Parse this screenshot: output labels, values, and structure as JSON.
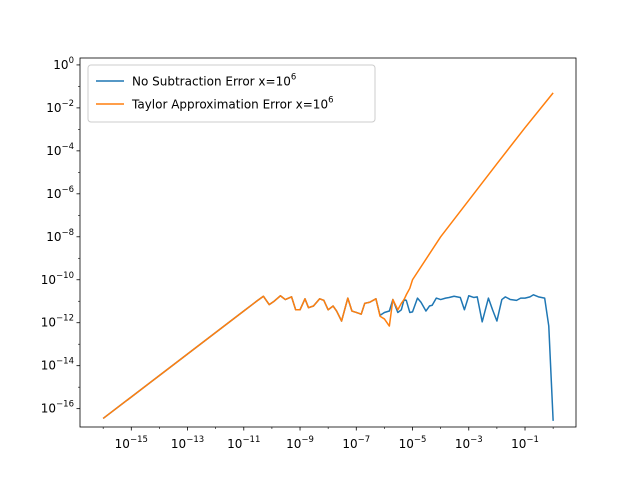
{
  "chart_data": {
    "type": "line",
    "xscale": "log",
    "yscale": "log",
    "xlim": [
      1.5e-17,
      6.5
    ],
    "ylim": [
      1.4e-17,
      2.1
    ],
    "grid": false,
    "legend_position": "top-left",
    "x_ticks": [
      {
        "value": 1e-15,
        "base": "10",
        "exp": "−15"
      },
      {
        "value": 1e-13,
        "base": "10",
        "exp": "−13"
      },
      {
        "value": 1e-11,
        "base": "10",
        "exp": "−11"
      },
      {
        "value": 1e-09,
        "base": "10",
        "exp": "−9"
      },
      {
        "value": 1e-07,
        "base": "10",
        "exp": "−7"
      },
      {
        "value": 1e-05,
        "base": "10",
        "exp": "−5"
      },
      {
        "value": 0.001,
        "base": "10",
        "exp": "−3"
      },
      {
        "value": 0.1,
        "base": "10",
        "exp": "−1"
      }
    ],
    "y_ticks": [
      {
        "value": 1e-16,
        "base": "10",
        "exp": "−16"
      },
      {
        "value": 1e-14,
        "base": "10",
        "exp": "−14"
      },
      {
        "value": 1e-12,
        "base": "10",
        "exp": "−12"
      },
      {
        "value": 1e-10,
        "base": "10",
        "exp": "−10"
      },
      {
        "value": 1e-08,
        "base": "10",
        "exp": "−8"
      },
      {
        "value": 1e-06,
        "base": "10",
        "exp": "−6"
      },
      {
        "value": 0.0001,
        "base": "10",
        "exp": "−4"
      },
      {
        "value": 0.01,
        "base": "10",
        "exp": "−2"
      },
      {
        "value": 1,
        "base": "10",
        "exp": "0"
      }
    ],
    "series": [
      {
        "name": "No Subtraction Error x=10^6",
        "legend_text": "No Subtraction Error x=10",
        "legend_exp": "6",
        "color": "#1f77b4",
        "x": [
          1e-16,
          1e-15,
          1e-14,
          1e-13,
          1e-12,
          1e-11,
          2e-11,
          3e-11,
          5e-11,
          8e-11,
          1.2e-10,
          2e-10,
          3e-10,
          5e-10,
          7e-10,
          1e-09,
          1.5e-09,
          2e-09,
          3e-09,
          5e-09,
          7e-09,
          1e-08,
          1.5e-08,
          2e-08,
          3e-08,
          5e-08,
          7e-08,
          1e-07,
          1.5e-07,
          2e-07,
          3e-07,
          5e-07,
          7e-07,
          1e-06,
          1.5e-06,
          2e-06,
          3e-06,
          4e-06,
          5e-06,
          6e-06,
          8e-06,
          1e-05,
          1.5e-05,
          2e-05,
          3e-05,
          4e-05,
          5e-05,
          7e-05,
          0.0001,
          0.00015,
          0.0002,
          0.0003,
          0.0005,
          0.0007,
          0.001,
          0.0015,
          0.002,
          0.003,
          0.005,
          0.007,
          0.01,
          0.015,
          0.02,
          0.03,
          0.05,
          0.07,
          0.1,
          0.15,
          0.2,
          0.3,
          0.5,
          0.7,
          1
        ],
        "y": [
          3.5e-17,
          3.5e-16,
          3.5e-15,
          3.5e-14,
          3.5e-13,
          3.5e-12,
          7e-12,
          1.05e-11,
          1.7e-11,
          7e-12,
          1e-11,
          1.8e-11,
          1.2e-11,
          1.6e-11,
          4e-12,
          4e-12,
          1.3e-11,
          5e-12,
          6e-12,
          1.3e-11,
          1.1e-11,
          4e-12,
          6e-12,
          3.5e-12,
          1.2e-12,
          1.4e-11,
          3.5e-12,
          3e-12,
          2.5e-12,
          8e-12,
          9e-12,
          1.3e-11,
          2.2e-12,
          3e-12,
          3.5e-12,
          1.2e-11,
          3e-12,
          4e-12,
          1.2e-11,
          1.1e-11,
          3e-12,
          3.2e-12,
          1.4e-11,
          9e-12,
          3.5e-12,
          6e-12,
          6.5e-12,
          1.4e-11,
          1.2e-11,
          1.4e-11,
          1.5e-11,
          1.7e-11,
          1.5e-11,
          4e-12,
          1.8e-11,
          1.5e-11,
          1.6e-11,
          1.1e-12,
          1.4e-11,
          4e-12,
          1.2e-12,
          1.2e-11,
          1.6e-11,
          1.2e-11,
          1.1e-11,
          1.4e-11,
          1.4e-11,
          1.6e-11,
          2e-11,
          1.6e-11,
          1.4e-11,
          7e-13,
          2.7e-17
        ]
      },
      {
        "name": "Taylor Approximation Error x=10^6",
        "legend_text": "Taylor Approximation Error x=10",
        "legend_exp": "6",
        "color": "#ff7f0e",
        "x": [
          1e-16,
          1e-15,
          1e-14,
          1e-13,
          1e-12,
          1e-11,
          2e-11,
          3e-11,
          5e-11,
          8e-11,
          1.2e-10,
          2e-10,
          3e-10,
          5e-10,
          7e-10,
          1e-09,
          1.5e-09,
          2e-09,
          3e-09,
          5e-09,
          7e-09,
          1e-08,
          1.5e-08,
          2e-08,
          3e-08,
          5e-08,
          7e-08,
          1e-07,
          1.5e-07,
          2e-07,
          3e-07,
          5e-07,
          7e-07,
          1e-06,
          1.5e-06,
          2e-06,
          3e-06,
          4e-06,
          5e-06,
          6e-06,
          8e-06,
          1e-05,
          0.0001,
          0.001,
          0.01,
          0.1,
          1
        ],
        "y": [
          3.5e-17,
          3.5e-16,
          3.5e-15,
          3.5e-14,
          3.5e-13,
          3.5e-12,
          7e-12,
          1.05e-11,
          1.7e-11,
          7e-12,
          1e-11,
          1.8e-11,
          1.2e-11,
          1.6e-11,
          4e-12,
          4e-12,
          1.3e-11,
          5e-12,
          6e-12,
          1.3e-11,
          1.1e-11,
          4e-12,
          6e-12,
          3.5e-12,
          1.2e-12,
          1.4e-11,
          3.5e-12,
          3e-12,
          2.5e-12,
          8e-12,
          9e-12,
          1.3e-11,
          2e-12,
          1.5e-12,
          7e-13,
          1.2e-11,
          4e-12,
          8e-12,
          1.2e-11,
          2e-11,
          4e-11,
          1e-10,
          1e-08,
          5e-07,
          2.5e-05,
          0.0012,
          0.05
        ]
      }
    ]
  }
}
